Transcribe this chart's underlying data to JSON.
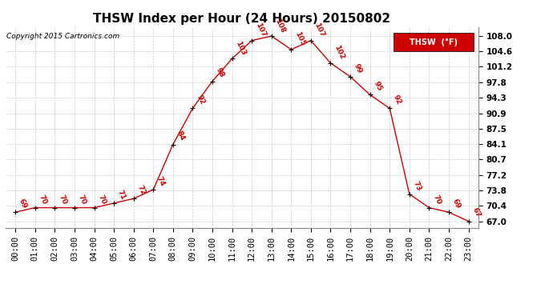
{
  "title": "THSW Index per Hour (24 Hours) 20150802",
  "copyright": "Copyright 2015 Cartronics.com",
  "hours": [
    "00:00",
    "01:00",
    "02:00",
    "03:00",
    "04:00",
    "05:00",
    "06:00",
    "07:00",
    "08:00",
    "09:00",
    "10:00",
    "11:00",
    "12:00",
    "13:00",
    "14:00",
    "15:00",
    "16:00",
    "17:00",
    "18:00",
    "19:00",
    "20:00",
    "21:00",
    "22:00",
    "23:00"
  ],
  "values": [
    69,
    70,
    70,
    70,
    70,
    71,
    72,
    74,
    84,
    92,
    98,
    103,
    107,
    108,
    105,
    107,
    102,
    99,
    95,
    92,
    73,
    70,
    69,
    67
  ],
  "yticks": [
    67.0,
    70.4,
    73.8,
    77.2,
    80.7,
    84.1,
    87.5,
    90.9,
    94.3,
    97.8,
    101.2,
    104.6,
    108.0
  ],
  "ytick_labels": [
    "67.0",
    "70.4",
    "73.8",
    "77.2",
    "80.7",
    "84.1",
    "87.5",
    "90.9",
    "94.3",
    "97.8",
    "101.2",
    "104.6",
    "108.0"
  ],
  "line_color": "#cc0000",
  "grid_color": "#cccccc",
  "bg_color": "#ffffff",
  "legend_label": "THSW  (°F)",
  "legend_box_color": "#cc0000",
  "legend_text_color": "#ffffff",
  "title_fontsize": 11,
  "tick_fontsize": 7.5,
  "copyright_fontsize": 6.5,
  "annot_fontsize": 6.5,
  "ylim_low": 65.5,
  "ylim_high": 110.0
}
